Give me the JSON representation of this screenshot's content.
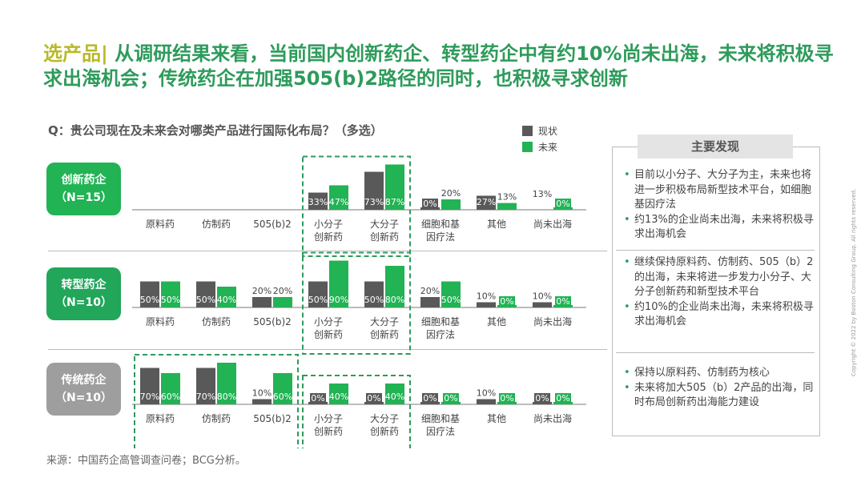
{
  "title": {
    "prefix": "选产品|",
    "text": "从调研结果来看，当前国内创新药企、转型药企中有约10%尚未出海，未来将积极寻求出海机会；传统药企在加强505(b)2路径的同时，也积极寻求创新"
  },
  "question": "Q：贵公司现在及未来会对哪类产品进行国际化布局？（多选）",
  "legend": [
    {
      "label": "现状",
      "color": "#595959"
    },
    {
      "label": "未来",
      "color": "#21b354"
    }
  ],
  "colors": {
    "current": "#595959",
    "future": "#21b354",
    "title_green": "#2e9b5b",
    "title_prefix": "#b8b928",
    "dash_box": "#2e9b5b"
  },
  "chart_data": {
    "type": "bar",
    "categories": [
      "原料药",
      "仿制药",
      "505(b)2",
      "小分子\n创新药",
      "大分子\n创新药",
      "细胞和基\n因疗法",
      "其他",
      "尚未出海"
    ],
    "value_unit": "%",
    "groups": [
      {
        "label": "创新药企",
        "sample": "（N=15）",
        "color": "#21b354",
        "series": [
          {
            "name": "现状",
            "values": [
              null,
              null,
              null,
              33,
              73,
              0,
              27,
              null
            ]
          },
          {
            "name": "未来",
            "values": [
              null,
              null,
              null,
              47,
              87,
              20,
              13,
              0
            ]
          }
        ],
        "extra_label": {
          "category_index": 7,
          "value": 13
        }
      },
      {
        "label": "转型药企",
        "sample": "（N=10）",
        "color": "#21a65a",
        "series": [
          {
            "name": "现状",
            "values": [
              50,
              50,
              20,
              50,
              50,
              20,
              10,
              10
            ]
          },
          {
            "name": "未来",
            "values": [
              50,
              40,
              20,
              90,
              80,
              50,
              0,
              0
            ]
          }
        ]
      },
      {
        "label": "传统药企",
        "sample": "（N=10）",
        "color": "#9e9e9e",
        "series": [
          {
            "name": "现状",
            "values": [
              70,
              70,
              10,
              0,
              0,
              0,
              10,
              0
            ]
          },
          {
            "name": "未来",
            "values": [
              60,
              80,
              60,
              40,
              40,
              0,
              0,
              0
            ]
          }
        ]
      }
    ]
  },
  "findings": {
    "heading": "主要发现",
    "blocks": [
      [
        "目前以小分子、大分子为主，未来也将进一步积极布局新型技术平台，如细胞基因疗法",
        "约13%的企业尚未出海，未来将积极寻求出海机会"
      ],
      [
        "继续保持原料药、仿制药、505（b）2的出海，未来将进一步发力小分子、大分子创新药和新型技术平台",
        "约10%的企业尚未出海，未来将积极寻求出海机会"
      ],
      [
        "保持以原料药、仿制药为核心",
        "未来将加大505（b）2产品的出海，同时布局创新药出海能力建设"
      ]
    ]
  },
  "source": "来源：中国药企高管调查问卷；BCG分析。",
  "copyright": "Copyright © 2022 by Boston Consulting Group. All rights reserved."
}
